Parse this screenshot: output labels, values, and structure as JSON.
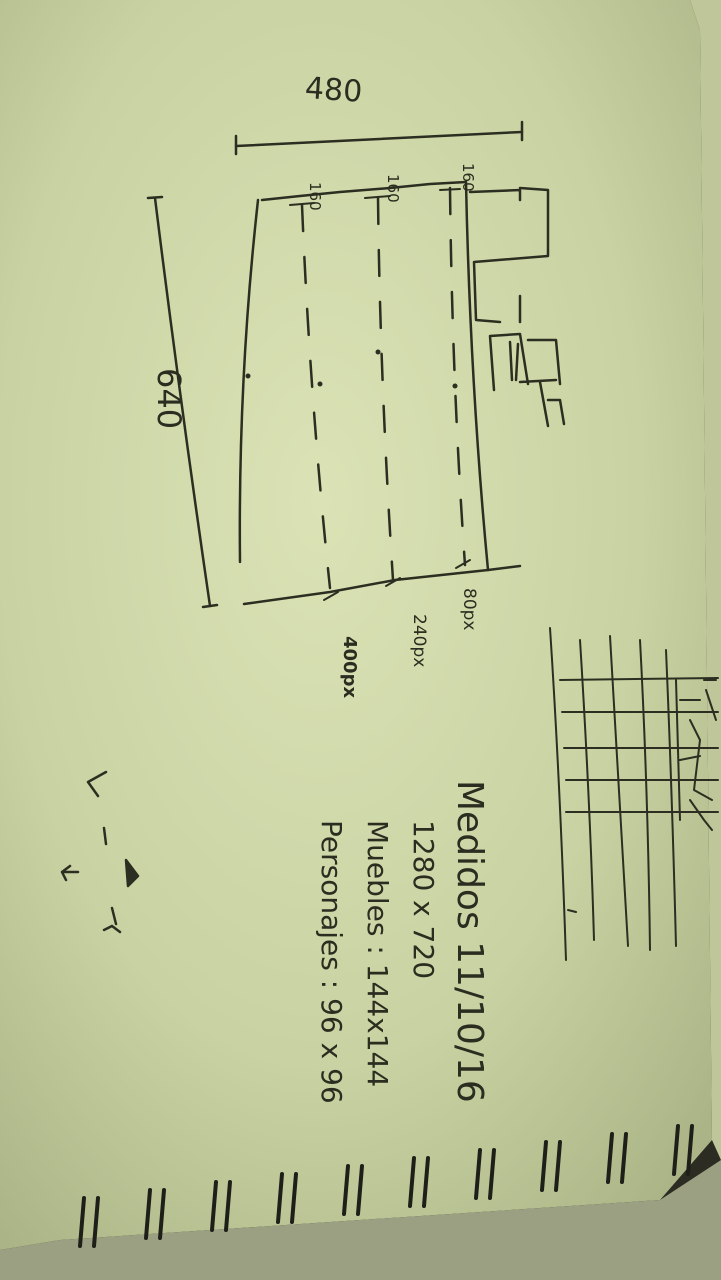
{
  "sketch": {
    "width_label": "480",
    "height_label": "640",
    "row_labels": [
      "160",
      "160",
      "160"
    ],
    "offset_labels": [
      "80px",
      "240px",
      "400px"
    ]
  },
  "notes": {
    "title": "Medidos 11/10/16",
    "lines": [
      "1280 x 720",
      "Muebles : 144x144",
      "Personajes : 96 x 96"
    ]
  },
  "colors": {
    "paper": "#d3dcae",
    "ink": "#2b2e20"
  }
}
